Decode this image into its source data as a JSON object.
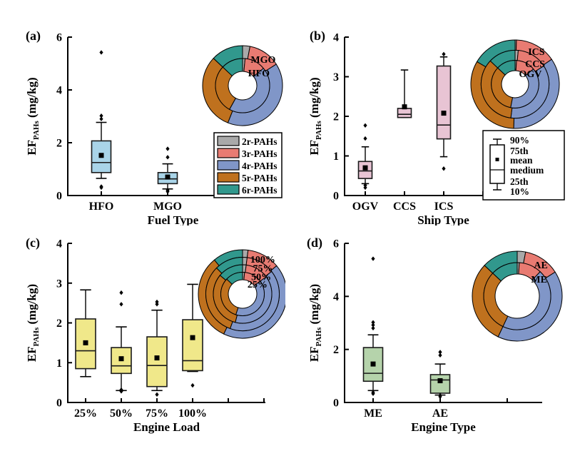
{
  "figure_title": "",
  "pah_colors": {
    "2r": "#a9a9a9",
    "3r": "#e87b72",
    "4r": "#8096c8",
    "5r": "#bf711e",
    "6r": "#31988d"
  },
  "pah_legend": {
    "items": [
      {
        "label": "2r-PAHs",
        "color": "#a9a9a9"
      },
      {
        "label": "3r-PAHs",
        "color": "#e87b72"
      },
      {
        "label": "4r-PAHs",
        "color": "#8096c8"
      },
      {
        "label": "5r-PAHs",
        "color": "#bf711e"
      },
      {
        "label": "6r-PAHs",
        "color": "#31988d"
      }
    ]
  },
  "boxplot_legend": {
    "labels": [
      "90%",
      "75th",
      "mean",
      "medium",
      "25th",
      "10%"
    ]
  },
  "chart_data": [
    {
      "type": "box",
      "panel_label": "(a)",
      "xlabel": "Fuel Type",
      "ylabel": {
        "prefix": "EF",
        "sub": "PAHs",
        "suffix": " (mg/kg)"
      },
      "ylim": [
        0,
        6
      ],
      "yticks": [
        0,
        2,
        4,
        6
      ],
      "box_fill": "#a9d4e8",
      "categories": [
        "HFO",
        "MGO"
      ],
      "boxes": [
        {
          "category": "HFO",
          "p10": 0.65,
          "q1": 0.87,
          "median": 1.25,
          "mean": 1.52,
          "q3": 2.07,
          "p90": 2.77,
          "outliers": [
            0.3,
            0.34,
            2.9,
            3.02,
            5.42
          ]
        },
        {
          "category": "MGO",
          "p10": 0.25,
          "q1": 0.45,
          "median": 0.63,
          "mean": 0.7,
          "q3": 0.87,
          "p90": 1.2,
          "outliers": [
            0.15,
            0.2,
            1.45,
            1.77
          ]
        }
      ],
      "donut_rings_outer_to_inner": [
        {
          "name": "MGO",
          "percent": [
            3,
            13,
            40,
            31,
            13
          ]
        },
        {
          "name": "HFO",
          "percent": [
            1.5,
            12.5,
            44,
            29,
            13
          ]
        }
      ],
      "show_pah_legend": true,
      "show_boxplot_legend": false
    },
    {
      "type": "box",
      "panel_label": "(b)",
      "xlabel": "Ship Type",
      "ylabel": {
        "prefix": "EF",
        "sub": "PAHs",
        "suffix": " (mg/kg)"
      },
      "ylim": [
        0,
        4
      ],
      "yticks": [
        0,
        1,
        2,
        3,
        4
      ],
      "box_fill": "#e8c4d4",
      "categories": [
        "OGV",
        "CCS",
        "ICS"
      ],
      "boxes": [
        {
          "category": "OGV",
          "p10": 0.3,
          "q1": 0.43,
          "median": 0.62,
          "mean": 0.7,
          "q3": 0.86,
          "p90": 1.23,
          "outliers": [
            0.2,
            0.26,
            1.44,
            1.77
          ]
        },
        {
          "category": "CCS",
          "p10": 1.97,
          "q1": 1.97,
          "median": 2.05,
          "mean": 2.24,
          "q3": 2.2,
          "p90": 3.17,
          "outliers": []
        },
        {
          "category": "ICS",
          "p10": 0.98,
          "q1": 1.43,
          "median": 1.78,
          "mean": 2.08,
          "q3": 3.27,
          "p90": 3.5,
          "outliers": [
            0.68,
            3.57
          ]
        }
      ],
      "donut_rings_outer_to_inner": [
        {
          "name": "ICS",
          "percent": [
            0.5,
            15,
            35,
            33,
            16.5
          ]
        },
        {
          "name": "CCS",
          "percent": [
            1.5,
            14.5,
            36,
            35,
            13
          ]
        },
        {
          "name": "OGV",
          "percent": [
            1,
            13,
            39,
            34,
            13
          ]
        }
      ],
      "show_pah_legend": false,
      "show_boxplot_legend": true
    },
    {
      "type": "box",
      "panel_label": "(c)",
      "xlabel": "Engine Load",
      "ylabel": {
        "prefix": "EF",
        "sub": "PAHs",
        "suffix": " (mg/kg)"
      },
      "ylim": [
        0,
        4
      ],
      "yticks": [
        0,
        1,
        2,
        3,
        4
      ],
      "box_fill": "#f0e88a",
      "categories": [
        "25%",
        "50%",
        "75%",
        "100%"
      ],
      "boxes": [
        {
          "category": "25%",
          "p10": 0.65,
          "q1": 0.85,
          "median": 1.3,
          "mean": 1.5,
          "q3": 2.1,
          "p90": 2.83,
          "outliers": []
        },
        {
          "category": "50%",
          "p10": 0.3,
          "q1": 0.73,
          "median": 0.92,
          "mean": 1.1,
          "q3": 1.38,
          "p90": 1.9,
          "outliers": [
            0.28,
            0.32,
            2.47,
            2.76
          ]
        },
        {
          "category": "75%",
          "p10": 0.3,
          "q1": 0.4,
          "median": 0.93,
          "mean": 1.12,
          "q3": 1.65,
          "p90": 2.32,
          "outliers": [
            0.2,
            2.47,
            2.53
          ]
        },
        {
          "category": "100%",
          "p10": 0.78,
          "q1": 0.8,
          "median": 1.05,
          "mean": 1.63,
          "q3": 2.08,
          "p90": 2.97,
          "outliers": [
            0.43
          ]
        }
      ],
      "donut_rings_outer_to_inner": [
        {
          "name": "100%",
          "percent": [
            2,
            12,
            43,
            32,
            11
          ]
        },
        {
          "name": "75%",
          "percent": [
            2,
            12.5,
            41,
            32,
            12.5
          ]
        },
        {
          "name": "50%",
          "percent": [
            2,
            13,
            39,
            32,
            14
          ]
        },
        {
          "name": "25%",
          "percent": [
            1.5,
            13.5,
            40,
            32,
            13
          ]
        }
      ],
      "show_pah_legend": false,
      "show_boxplot_legend": false
    },
    {
      "type": "box",
      "panel_label": "(d)",
      "xlabel": "Engine Type",
      "ylabel": {
        "prefix": "EF",
        "sub": "PAHs",
        "suffix": " (mg/kg)"
      },
      "ylim": [
        0,
        6
      ],
      "yticks": [
        0,
        2,
        4,
        6
      ],
      "box_fill": "#b5d3ab",
      "categories": [
        "ME",
        "AE"
      ],
      "boxes": [
        {
          "category": "ME",
          "p10": 0.45,
          "q1": 0.8,
          "median": 1.1,
          "mean": 1.45,
          "q3": 2.07,
          "p90": 2.55,
          "outliers": [
            0.33,
            0.38,
            2.8,
            2.92,
            3.02,
            5.42
          ]
        },
        {
          "category": "AE",
          "p10": 0.28,
          "q1": 0.35,
          "median": 0.85,
          "mean": 0.82,
          "q3": 1.05,
          "p90": 1.45,
          "outliers": [
            0.22,
            0.27,
            1.78,
            1.9
          ]
        }
      ],
      "donut_rings_outer_to_inner": [
        {
          "name": "AE",
          "percent": [
            3,
            13,
            41,
            30,
            13
          ]
        },
        {
          "name": "ME",
          "percent": [
            1,
            11,
            45,
            30,
            13
          ]
        }
      ],
      "show_pah_legend": false,
      "show_boxplot_legend": false
    }
  ]
}
